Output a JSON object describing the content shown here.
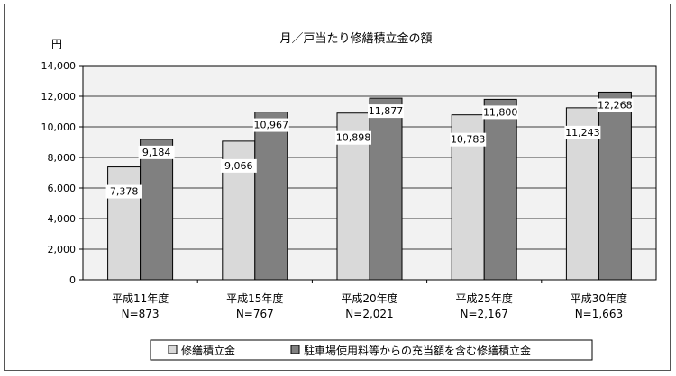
{
  "chart_data": {
    "type": "bar",
    "title": "月／戸当たり修繕積立金の額",
    "ylabel": "円",
    "ylim": [
      0,
      14000
    ],
    "yticks": [
      "0",
      "2,000",
      "4,000",
      "6,000",
      "8,000",
      "10,000",
      "12,000",
      "14,000"
    ],
    "ytick_values": [
      0,
      2000,
      4000,
      6000,
      8000,
      10000,
      12000,
      14000
    ],
    "grid": true,
    "legend_position": "bottom",
    "categories": [
      "平成11年度",
      "平成15年度",
      "平成20年度",
      "平成25年度",
      "平成30年度"
    ],
    "sample_sizes": [
      "N=873",
      "N=767",
      "N=2,021",
      "N=2,167",
      "N=1,663"
    ],
    "series": [
      {
        "name": "修繕積立金",
        "color": "#d9d9d9",
        "values": [
          7378,
          9066,
          10898,
          10783,
          11243
        ],
        "labels": [
          "7,378",
          "9,066",
          "10,898",
          "10,783",
          "11,243"
        ]
      },
      {
        "name": "駐車場使用料等からの充当額を含む修繕積立金",
        "color": "#808080",
        "values": [
          9184,
          10967,
          11877,
          11800,
          12268
        ],
        "labels": [
          "9,184",
          "10,967",
          "11,877",
          "11,800",
          "12,268"
        ]
      }
    ]
  }
}
